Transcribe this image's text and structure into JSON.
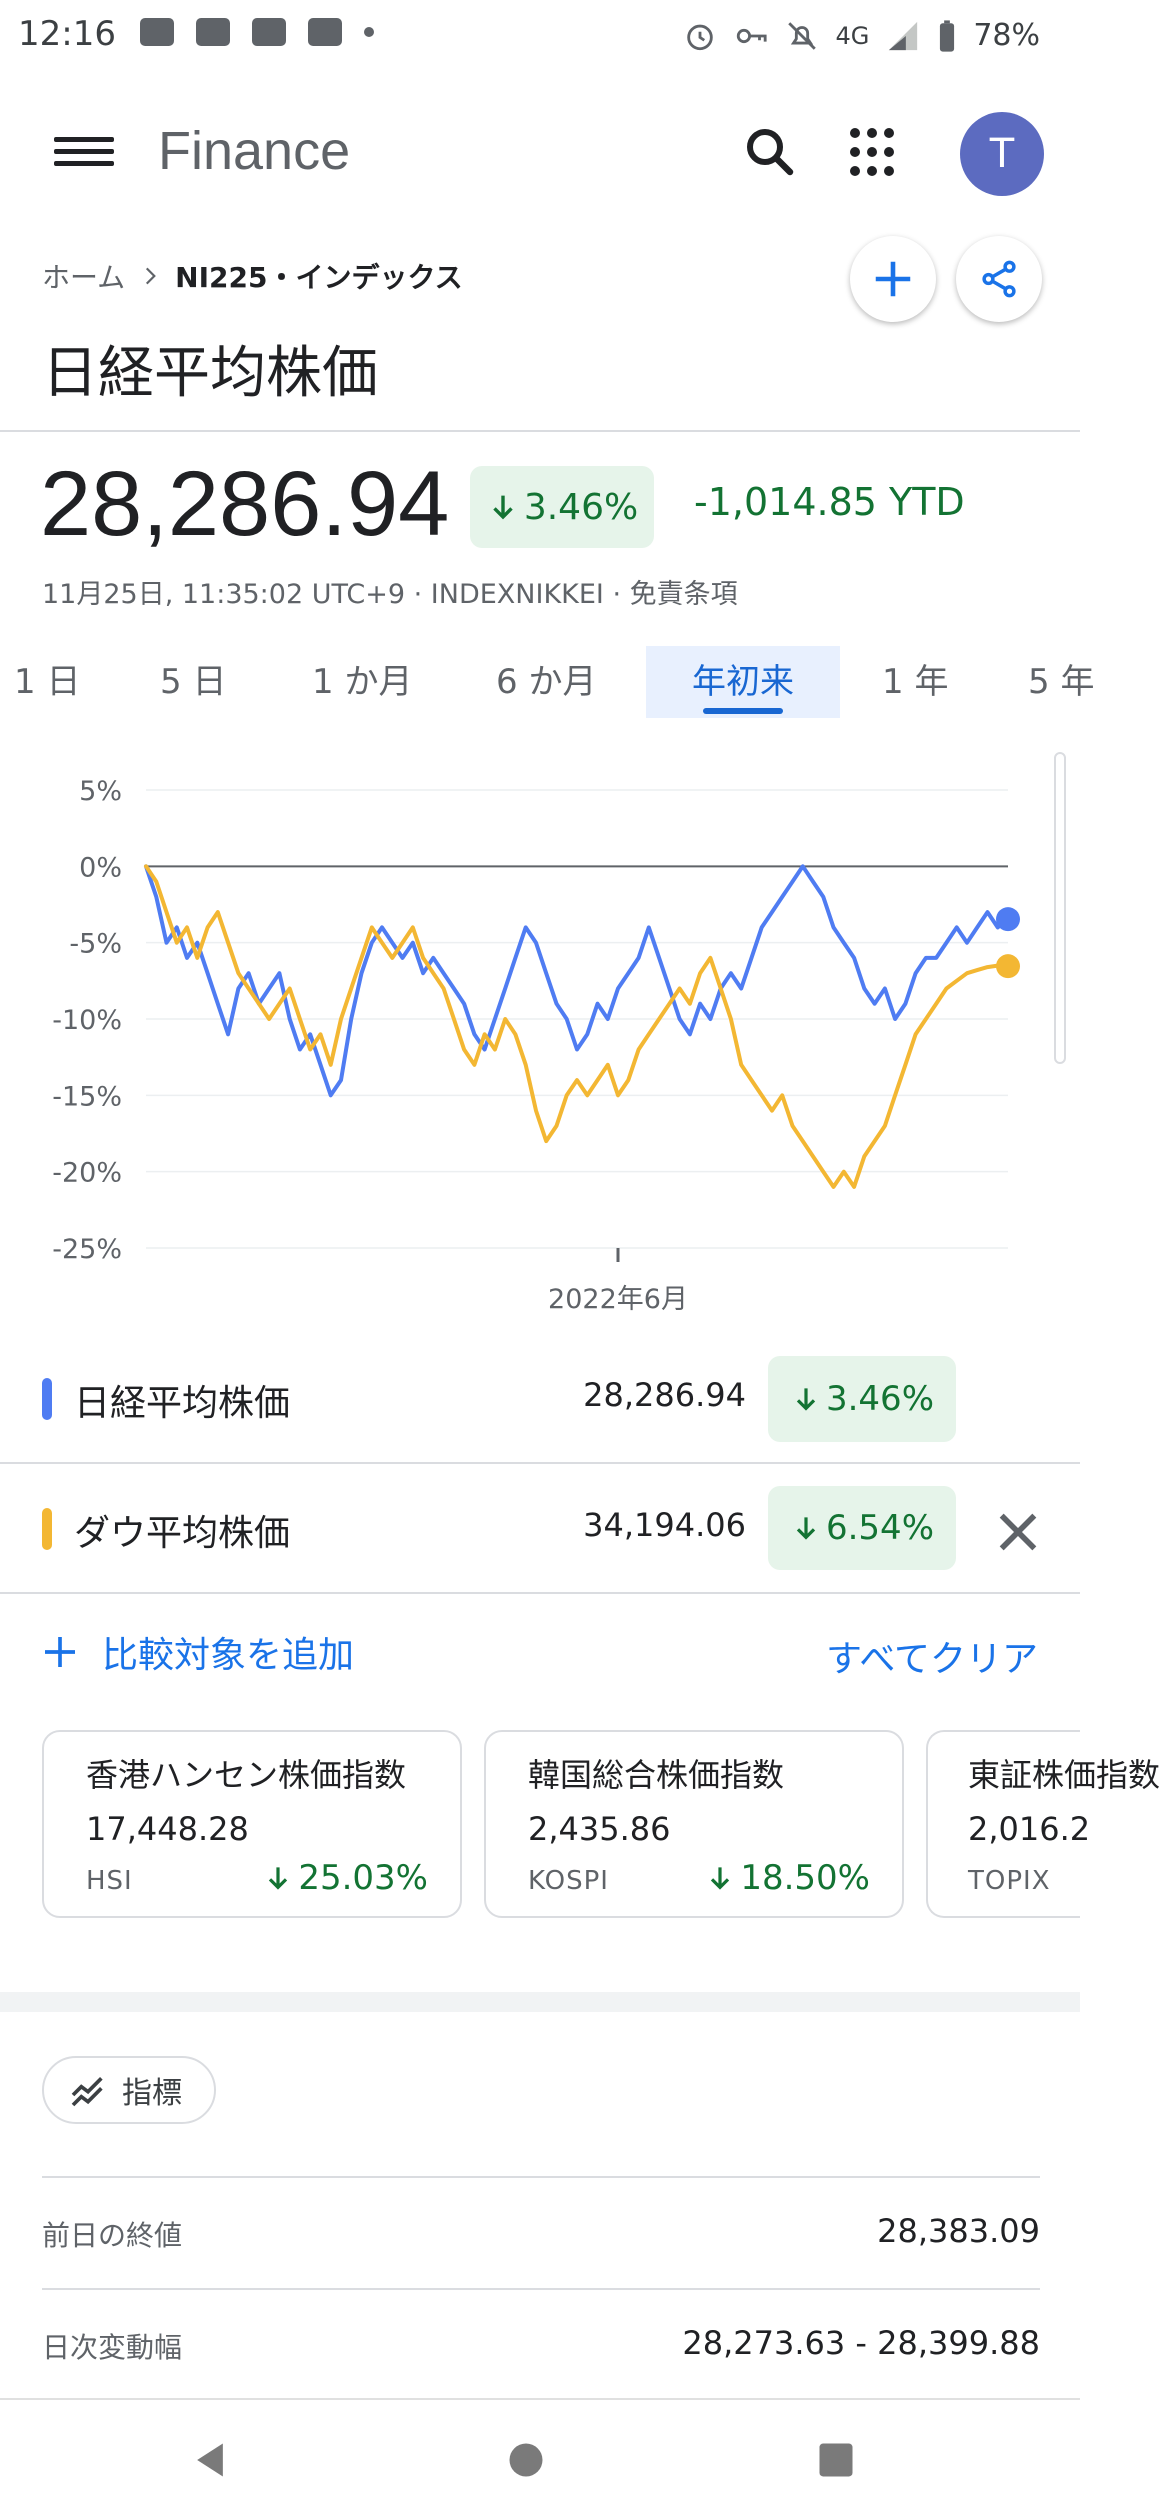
{
  "status_bar": {
    "time": "12:16",
    "network": "4G",
    "battery": "78%"
  },
  "app_bar": {
    "title": "Finance",
    "avatar_letter": "T"
  },
  "breadcrumb": {
    "home": "ホーム",
    "current": "NI225・インデックス"
  },
  "page_title": "日経平均株価",
  "quote": {
    "price": "28,286.94",
    "change_pct": "3.46%",
    "ytd": "-1,014.85 YTD",
    "timestamp": "11月25日, 11:35:02 UTC+9 · INDEXNIKKEI · 免責条項"
  },
  "ranges": [
    "1 日",
    "5 日",
    "1 か月",
    "6 か月",
    "年初来",
    "1 年",
    "5 年"
  ],
  "active_range": "年初来",
  "chart_data": {
    "type": "line",
    "ylim": [
      -25,
      5
    ],
    "y_ticks": [
      "5%",
      "0%",
      "-5%",
      "-10%",
      "-15%",
      "-20%",
      "-25%"
    ],
    "x_tick_label": "2022年6月",
    "grid": true,
    "series": [
      {
        "name": "日経平均株価",
        "color": "#4f7cf2",
        "values": [
          0,
          -2,
          -5,
          -4,
          -6,
          -5,
          -7,
          -9,
          -11,
          -8,
          -7,
          -9,
          -8,
          -7,
          -10,
          -12,
          -11,
          -13,
          -15,
          -14,
          -10,
          -7,
          -5,
          -4,
          -5,
          -6,
          -5,
          -7,
          -6,
          -7,
          -8,
          -9,
          -11,
          -12,
          -10,
          -8,
          -6,
          -4,
          -5,
          -7,
          -9,
          -10,
          -12,
          -11,
          -9,
          -10,
          -8,
          -7,
          -6,
          -4,
          -6,
          -8,
          -10,
          -11,
          -9,
          -10,
          -8,
          -7,
          -8,
          -6,
          -4,
          -3,
          -2,
          -1,
          0,
          -1,
          -2,
          -4,
          -5,
          -6,
          -8,
          -9,
          -8,
          -10,
          -9,
          -7,
          -6,
          -6,
          -5,
          -4,
          -5,
          -4,
          -3,
          -4,
          -3.5
        ],
        "end_value": -3.46
      },
      {
        "name": "ダウ平均株価",
        "color": "#f3b733",
        "values": [
          0,
          -1,
          -3,
          -5,
          -4,
          -6,
          -4,
          -3,
          -5,
          -7,
          -8,
          -9,
          -10,
          -9,
          -8,
          -10,
          -12,
          -11,
          -13,
          -10,
          -8,
          -6,
          -4,
          -5,
          -6,
          -5,
          -4,
          -6,
          -7,
          -8,
          -10,
          -12,
          -13,
          -11,
          -12,
          -10,
          -11,
          -13,
          -16,
          -18,
          -17,
          -15,
          -14,
          -15,
          -14,
          -13,
          -15,
          -14,
          -12,
          -11,
          -10,
          -9,
          -8,
          -9,
          -7,
          -6,
          -8,
          -10,
          -13,
          -14,
          -15,
          -16,
          -15,
          -17,
          -18,
          -19,
          -20,
          -21,
          -20,
          -21,
          -19,
          -18,
          -17,
          -15,
          -13,
          -11,
          -10,
          -9,
          -8,
          -7.5,
          -7,
          -6.8,
          -6.6,
          -6.5,
          -6.54
        ],
        "end_value": -6.54
      }
    ]
  },
  "legend": [
    {
      "name": "日経平均株価",
      "value": "28,286.94",
      "change": "3.46%",
      "color": "#4f7cf2"
    },
    {
      "name": "ダウ平均株価",
      "value": "34,194.06",
      "change": "6.54%",
      "color": "#f3b733"
    }
  ],
  "compare": {
    "add_label": "比較対象を追加",
    "clear_label": "すべてクリア"
  },
  "cards": [
    {
      "name": "香港ハンセン株価指数",
      "value": "17,448.28",
      "symbol": "HSI",
      "change": "25.03%"
    },
    {
      "name": "韓国総合株価指数",
      "value": "2,435.86",
      "symbol": "KOSPI",
      "change": "18.50%"
    },
    {
      "name": "東証株価指数",
      "value": "2,016.2",
      "symbol": "TOPIX",
      "change": ""
    }
  ],
  "metrics": {
    "chip_label": "指標"
  },
  "stats": [
    {
      "label": "前日の終値",
      "value": "28,383.09"
    },
    {
      "label": "日次変動幅",
      "value": "28,273.63 - 28,399.88"
    }
  ],
  "colors": {
    "accent": "#1a73e8",
    "positive_bg": "#e6f4ea",
    "positive_text": "#137333"
  }
}
